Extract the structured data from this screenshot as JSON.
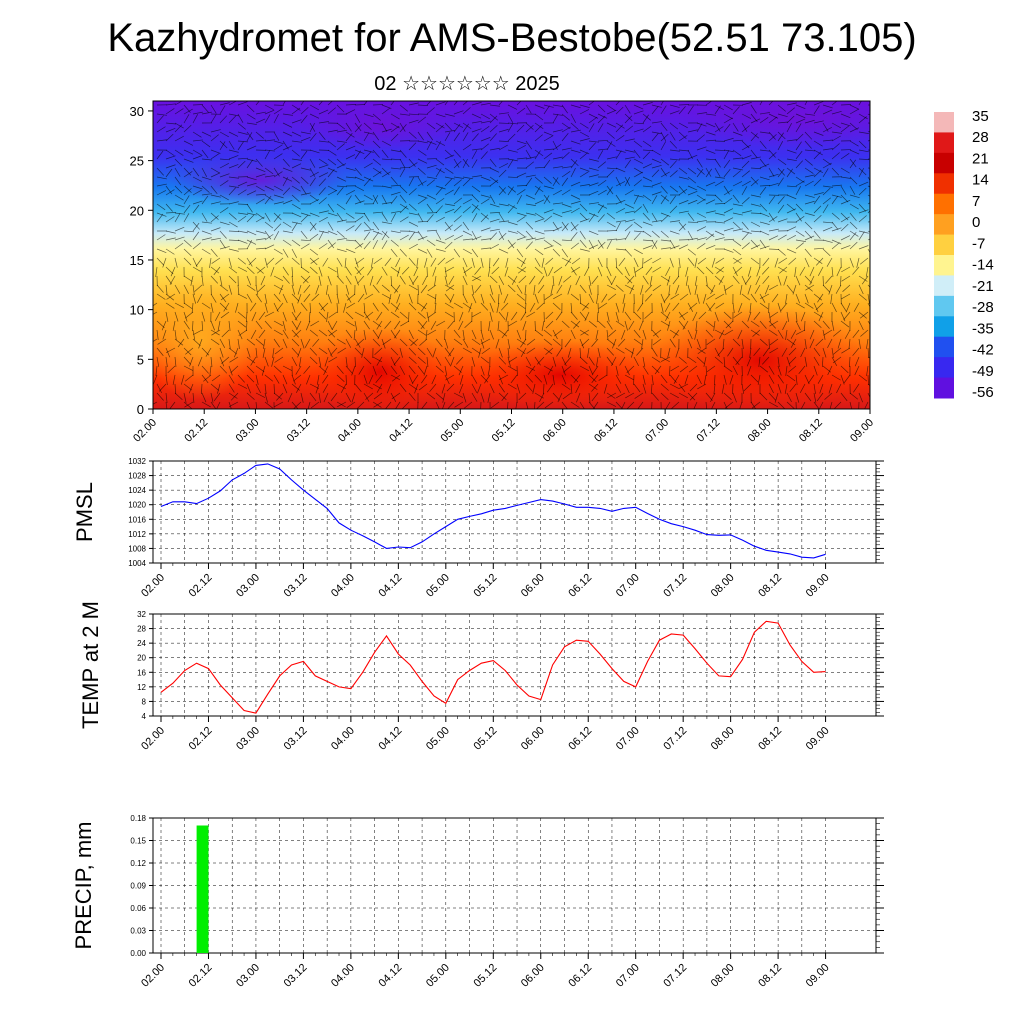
{
  "header": {
    "title": "Kazhydromet for AMS-Bestobe(52.51 73.105)",
    "subtitle": "02 ☆☆☆☆☆☆ 2025"
  },
  "chart_data": [
    {
      "type": "heatmap",
      "title": "Kazhydromet for AMS-Bestobe(52.51 73.105)",
      "subtitle": "02 ☆☆☆☆☆☆ 2025",
      "x_tick_labels": [
        "02.00",
        "02.12",
        "03.00",
        "03.12",
        "04.00",
        "04.12",
        "05.00",
        "05.12",
        "06.00",
        "06.12",
        "07.00",
        "07.12",
        "08.00",
        "08.12",
        "09.00"
      ],
      "ylim": [
        0,
        31
      ],
      "y_ticks": [
        0,
        5,
        10,
        15,
        20,
        25,
        30
      ],
      "colorbar": {
        "labels": [
          "35",
          "28",
          "21",
          "14",
          "7",
          "0",
          "-7",
          "-14",
          "-21",
          "-28",
          "-35",
          "-42",
          "-49",
          "-56"
        ],
        "colors": [
          "#f4b8b8",
          "#e01818",
          "#c80000",
          "#f03000",
          "#ff7000",
          "#ffa020",
          "#ffd040",
          "#fff490",
          "#d0eef8",
          "#60c8f0",
          "#10a0e8",
          "#2050f0",
          "#3828f0",
          "#6010e0"
        ]
      },
      "overlay": "wind barbs"
    },
    {
      "type": "line",
      "ylabel": "PMSL",
      "color": "#0000ff",
      "ylim": [
        1004,
        1032
      ],
      "y_ticks": [
        1004,
        1008,
        1012,
        1016,
        1020,
        1024,
        1028,
        1032
      ],
      "x_tick_labels": [
        "02.00",
        "02.12",
        "03.00",
        "03.12",
        "04.00",
        "04.12",
        "05.00",
        "05.12",
        "06.00",
        "06.12",
        "07.00",
        "07.12",
        "08.00",
        "08.12",
        "09.00"
      ],
      "x": [
        0,
        3,
        6,
        9,
        12,
        15,
        18,
        21,
        24,
        27,
        30,
        33,
        36,
        39,
        42,
        45,
        48,
        51,
        54,
        57,
        60,
        63,
        66,
        69,
        72,
        75,
        78,
        81,
        84,
        87,
        90,
        93,
        96,
        99,
        102,
        105,
        108,
        111,
        114,
        117,
        120,
        123,
        126,
        129,
        132,
        135,
        138,
        141,
        144,
        147,
        150,
        153,
        156,
        159,
        162,
        165,
        168
      ],
      "values": [
        1019.5,
        1020.8,
        1020.8,
        1020.3,
        1021.8,
        1023.8,
        1026.8,
        1028.6,
        1030.8,
        1031.2,
        1029.8,
        1026.8,
        1024.0,
        1021.5,
        1019.0,
        1015.0,
        1013.0,
        1011.5,
        1009.8,
        1008.0,
        1008.4,
        1008.2,
        1009.8,
        1012.0,
        1014.0,
        1016.0,
        1016.8,
        1017.5,
        1018.5,
        1019.0,
        1019.8,
        1020.6,
        1021.4,
        1021.0,
        1020.2,
        1019.3,
        1019.3,
        1019.0,
        1018.2,
        1019.0,
        1019.3,
        1017.6,
        1016.0,
        1014.8,
        1014.0,
        1013.0,
        1011.8,
        1011.6,
        1011.7,
        1010.3,
        1008.6,
        1007.5,
        1007.0,
        1006.5,
        1005.6,
        1005.4,
        1006.4
      ]
    },
    {
      "type": "line",
      "ylabel": "TEMP at 2 M",
      "color": "#ff0000",
      "ylim": [
        4,
        32
      ],
      "y_ticks": [
        4,
        8,
        12,
        16,
        20,
        24,
        28,
        32
      ],
      "x_tick_labels": [
        "02.00",
        "02.12",
        "03.00",
        "03.12",
        "04.00",
        "04.12",
        "05.00",
        "05.12",
        "06.00",
        "06.12",
        "07.00",
        "07.12",
        "08.00",
        "08.12",
        "09.00"
      ],
      "x": [
        0,
        3,
        6,
        9,
        12,
        15,
        18,
        21,
        24,
        27,
        30,
        33,
        36,
        39,
        42,
        45,
        48,
        51,
        54,
        57,
        60,
        63,
        66,
        69,
        72,
        75,
        78,
        81,
        84,
        87,
        90,
        93,
        96,
        99,
        102,
        105,
        108,
        111,
        114,
        117,
        120,
        123,
        126,
        129,
        132,
        135,
        138,
        141,
        144,
        147,
        150,
        153,
        156,
        159,
        162,
        165,
        168
      ],
      "values": [
        10.5,
        13.0,
        16.5,
        18.5,
        17.0,
        12.5,
        9.0,
        5.5,
        4.8,
        10.0,
        15.0,
        18.0,
        19.0,
        15.0,
        13.5,
        12.0,
        11.5,
        16.0,
        21.5,
        26.0,
        21.0,
        18.0,
        13.5,
        9.5,
        7.5,
        14.0,
        16.5,
        18.5,
        19.2,
        16.5,
        12.5,
        9.5,
        8.5,
        18.0,
        23.0,
        24.8,
        24.5,
        21.0,
        17.0,
        13.5,
        12.0,
        19.0,
        24.8,
        26.5,
        26.2,
        22.5,
        18.5,
        15.0,
        14.8,
        19.5,
        27.0,
        30.0,
        29.5,
        23.5,
        19.0,
        16.0,
        16.2
      ]
    },
    {
      "type": "bar",
      "ylabel": "PRECIP, mm",
      "color": "#00ee00",
      "ylim": [
        0,
        0.18
      ],
      "y_ticks": [
        "0.00",
        "0.03",
        "0.06",
        "0.09",
        "0.12",
        "0.15",
        "0.18"
      ],
      "x_tick_labels": [
        "02.00",
        "02.12",
        "03.00",
        "03.12",
        "04.00",
        "04.12",
        "05.00",
        "05.12",
        "06.00",
        "06.12",
        "07.00",
        "07.12",
        "08.00",
        "08.12",
        "09.00"
      ],
      "bars": [
        {
          "x_start": 9,
          "x_end": 12,
          "value": 0.17
        }
      ]
    }
  ]
}
